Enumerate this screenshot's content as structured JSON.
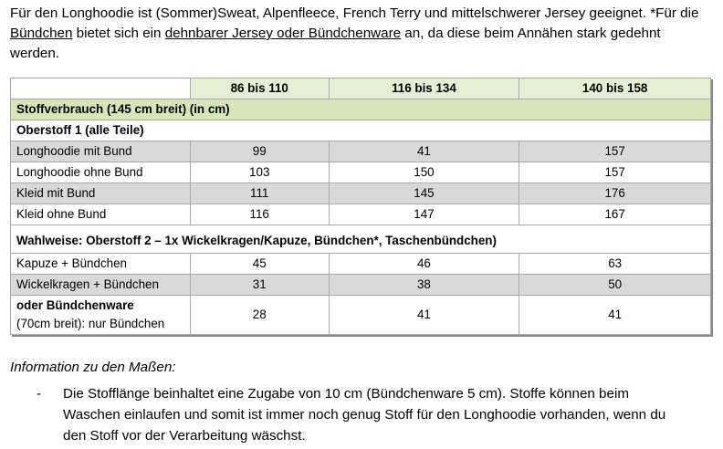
{
  "intro": {
    "part1": "Für den Longhoodie ist (Sommer)Sweat, Alpenfleece, French Terry und mittelschwerer Jersey geeignet. *Für die ",
    "link1": "Bündchen",
    "part2": " bietet sich ein ",
    "link2": "dehnbarer Jersey oder Bündchenware",
    "part3": " an, da diese beim Annähen stark gedehnt werden."
  },
  "table": {
    "columns": [
      "86 bis 110",
      "116 bis 134",
      "140 bis 158"
    ],
    "section_title": "Stoffverbrauch (145 cm breit) (in cm)",
    "group1_title": "Oberstoff 1 (alle Teile)",
    "group1_rows": [
      {
        "label": "Longhoodie mit Bund",
        "values": [
          "99",
          "41",
          "157"
        ]
      },
      {
        "label": "Longhoodie ohne Bund",
        "values": [
          "103",
          "150",
          "157"
        ]
      },
      {
        "label": "Kleid mit Bund",
        "values": [
          "111",
          "145",
          "176"
        ]
      },
      {
        "label": "Kleid ohne Bund",
        "values": [
          "116",
          "147",
          "167"
        ]
      }
    ],
    "group2_title": "Wahlweise: Oberstoff 2 – 1x Wickelkragen/Kapuze, Bündchen*, Taschenbündchen)",
    "group2_rows": [
      {
        "label": "Kapuze + Bündchen",
        "values": [
          "45",
          "46",
          "63"
        ]
      },
      {
        "label": "Wickelkragen + Bündchen",
        "values": [
          "31",
          "38",
          "50"
        ]
      }
    ],
    "last_row": {
      "label_bold": "oder Bündchenware",
      "label_normal": "(70cm breit): nur Bündchen",
      "values": [
        "28",
        "41",
        "41"
      ]
    }
  },
  "info": {
    "title": "Information zu den Maßen:",
    "bullet_marker": "-",
    "bullet_text": "Die Stofflänge beinhaltet eine Zugabe von 10 cm (Bündchenware 5 cm). Stoffe können beim Waschen einlaufen und somit ist immer noch genug Stoff für den Longhoodie vorhanden, wenn du den Stoff vor der Verarbeitung wäschst."
  }
}
